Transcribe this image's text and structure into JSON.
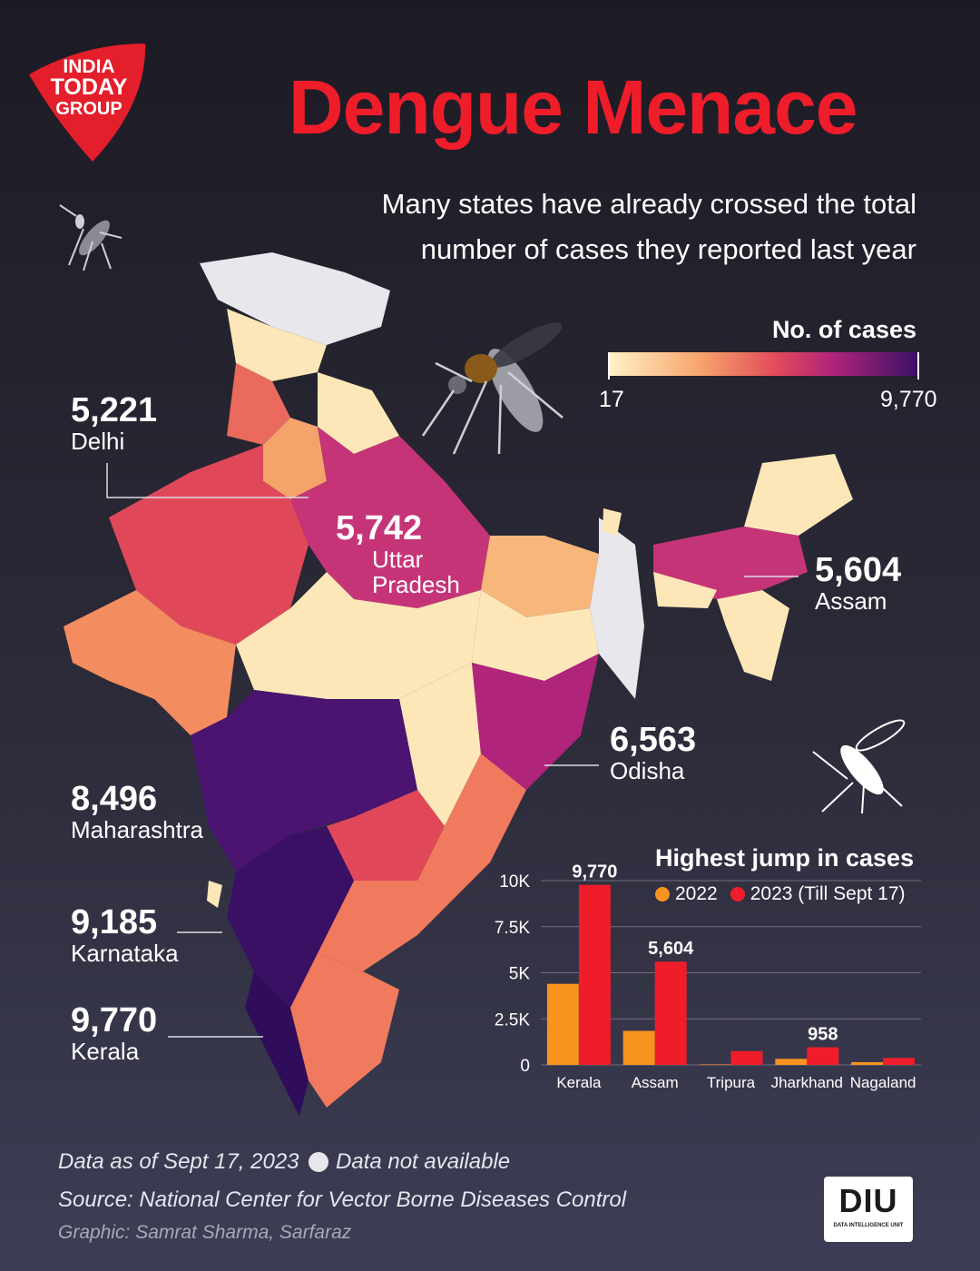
{
  "brand": {
    "logo_text": "INDIA TODAY GROUP",
    "logo_color": "#e41e2b"
  },
  "header": {
    "title": "Dengue Menace",
    "subtitle_line1": "Many states have already crossed the total",
    "subtitle_line2": "number of cases they reported last year"
  },
  "legend": {
    "title": "No. of cases",
    "min_label": "17",
    "max_label": "9,770"
  },
  "states": {
    "delhi": {
      "value": "5,221",
      "name": "Delhi"
    },
    "up": {
      "value": "5,742",
      "name_line1": "Uttar",
      "name_line2": "Pradesh"
    },
    "assam": {
      "value": "5,604",
      "name": "Assam"
    },
    "odisha": {
      "value": "6,563",
      "name": "Odisha"
    },
    "maharashtra": {
      "value": "8,496",
      "name": "Maharashtra"
    },
    "karnataka": {
      "value": "9,185",
      "name": "Karnataka"
    },
    "kerala": {
      "value": "9,770",
      "name": "Kerala"
    }
  },
  "chart_data": {
    "type": "bar",
    "title": "Highest jump in cases",
    "categories": [
      "Kerala",
      "Assam",
      "Tripura",
      "Jharkhand",
      "Nagaland"
    ],
    "series": [
      {
        "name": "2022",
        "values": [
          4400,
          1850,
          30,
          330,
          150
        ],
        "color": "#f7931e"
      },
      {
        "name": "2023 (Till Sept 17)",
        "values": [
          9770,
          5604,
          750,
          958,
          380
        ],
        "color": "#ef1d2a"
      }
    ],
    "data_labels": [
      "9,770",
      "5,604",
      "",
      "958",
      ""
    ],
    "y_ticks": [
      0,
      2500,
      5000,
      7500,
      10000
    ],
    "y_tick_labels": [
      "0",
      "2.5K",
      "5K",
      "7.5K",
      "10K"
    ],
    "ylim": [
      0,
      10000
    ],
    "xlabel": "",
    "ylabel": "",
    "legend_position": "top"
  },
  "footer": {
    "data_date": "Data as of Sept 17, 2023",
    "na_label": "Data not available",
    "source": "Source: National Center for Vector Borne Diseases Control",
    "credit": "Graphic: Samrat Sharma, Sarfaraz"
  },
  "diu": {
    "text": "DIU",
    "subtext": "DATA INTELLIGENCE UNIT"
  }
}
